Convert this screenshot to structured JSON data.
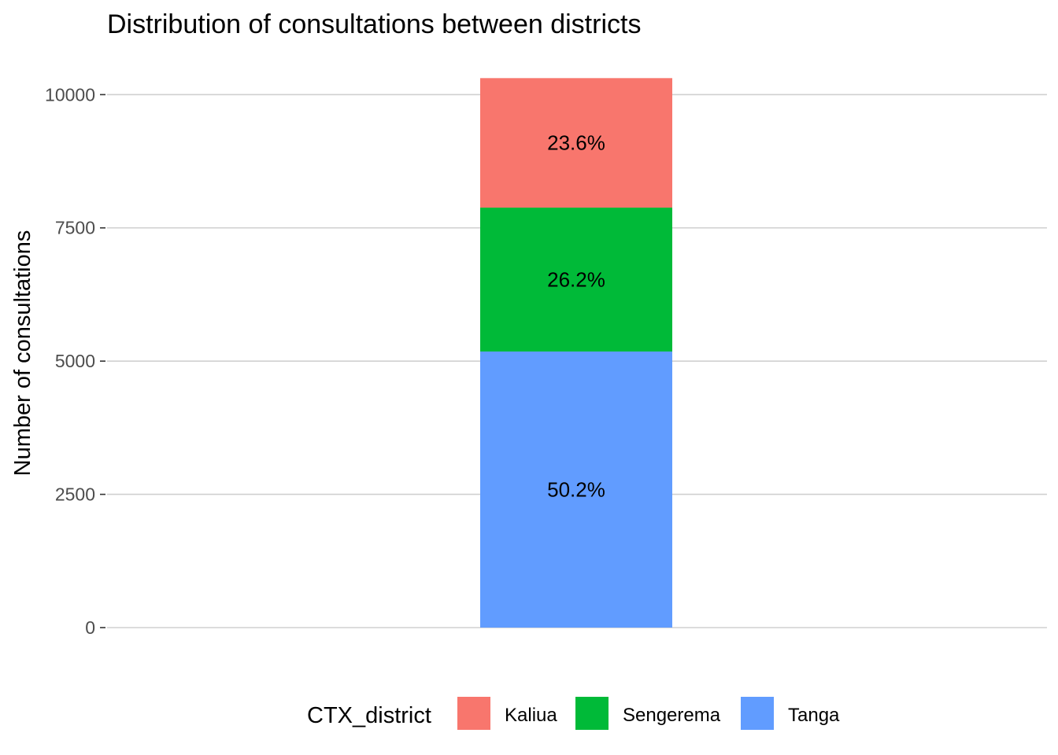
{
  "chart_data": {
    "type": "bar",
    "stacked": true,
    "title": "Distribution of consultations between districts",
    "xlabel": "",
    "ylabel": "Number of consultations",
    "ylim": [
      0,
      10300
    ],
    "yticks": [
      0,
      2500,
      5000,
      7500,
      10000
    ],
    "grid": true,
    "legend": {
      "title": "CTX_district",
      "position": "bottom"
    },
    "series": [
      {
        "name": "Tanga",
        "value": 5180,
        "label": "50.2%",
        "color": "#619CFF"
      },
      {
        "name": "Sengerema",
        "value": 2700,
        "label": "26.2%",
        "color": "#00BA38"
      },
      {
        "name": "Kaliua",
        "value": 2430,
        "label": "23.6%",
        "color": "#F8766D"
      }
    ]
  }
}
